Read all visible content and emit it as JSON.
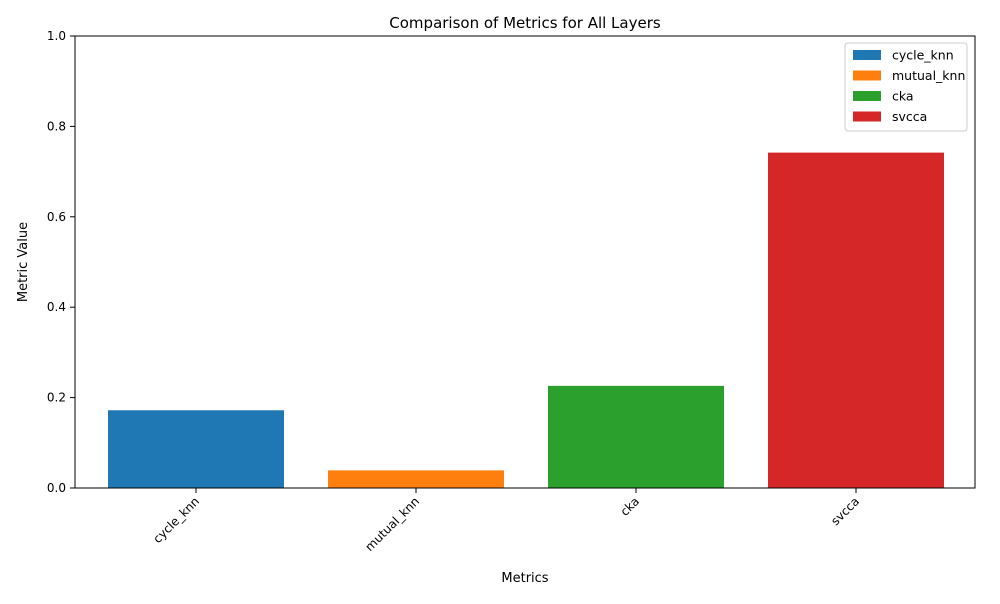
{
  "chart_data": {
    "type": "bar",
    "title": "Comparison of Metrics for All Layers",
    "xlabel": "Metrics",
    "ylabel": "Metric Value",
    "categories": [
      "cycle_knn",
      "mutual_knn",
      "cka",
      "svcca"
    ],
    "values": [
      0.172,
      0.039,
      0.226,
      0.742
    ],
    "colors": [
      "#1f77b4",
      "#ff7f0e",
      "#2ca02c",
      "#d62728"
    ],
    "ylim": [
      0,
      1
    ],
    "yticks": [
      "0.0",
      "0.2",
      "0.4",
      "0.6",
      "0.8",
      "1.0"
    ],
    "ytick_values": [
      0,
      0.2,
      0.4,
      0.6,
      0.8,
      1.0
    ],
    "legend": {
      "placement": "top-right",
      "entries": [
        "cycle_knn",
        "mutual_knn",
        "cka",
        "svcca"
      ]
    },
    "grid": false
  }
}
